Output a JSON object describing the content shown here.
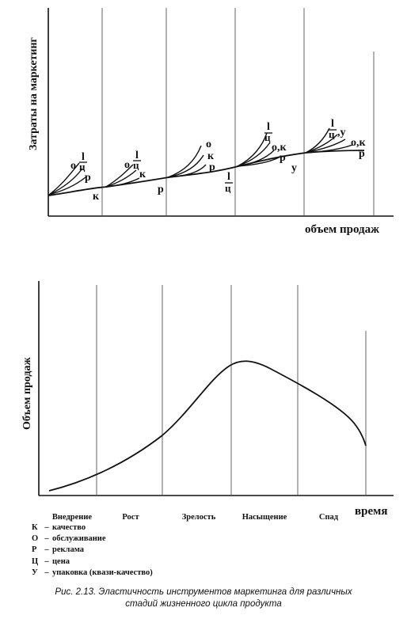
{
  "top_diagram": {
    "y_axis_title": "Затраты на маркетинг",
    "x_axis_title": "объем продаж"
  },
  "bottom_chart": {
    "y_axis_title": "Объем продаж",
    "x_axis_title": "время"
  },
  "stages": [
    "Внедрение",
    "Рост",
    "Зрелость",
    "Насыщение",
    "Спад"
  ],
  "curve_labels": {
    "s1_o": "о",
    "s1_l": "l",
    "s1_c": "ц",
    "s1_r": "р",
    "s1_k": "к",
    "s2_o": "о",
    "s2_l": "l",
    "s2_c": "ц",
    "s2_k": "к",
    "s2_r": "р",
    "s3_o": "о",
    "s3_k": "к",
    "s3_r": "р",
    "s3_l": "l",
    "s3_c": "ц",
    "s4_l": "l",
    "s4_c": "ц",
    "s4_ok": "о,к",
    "s4_r": "р",
    "s4_u": "у",
    "s5_l": "l",
    "s5_c": "ц",
    "s5_u": ",у",
    "s5_ok": "о,к",
    "s5_r": "р"
  },
  "legend": [
    {
      "code": "К",
      "text": "качество"
    },
    {
      "code": "О",
      "text": "обслуживание"
    },
    {
      "code": "Р",
      "text": "реклама"
    },
    {
      "code": "Ц",
      "text": "цена"
    },
    {
      "code": "У",
      "text": "упаковка (квази-качество)"
    }
  ],
  "caption": {
    "line1": "Рис. 2.13. Эластичность инструментов маркетинга для различных",
    "line2": "стадий жизненного цикла продукта"
  }
}
